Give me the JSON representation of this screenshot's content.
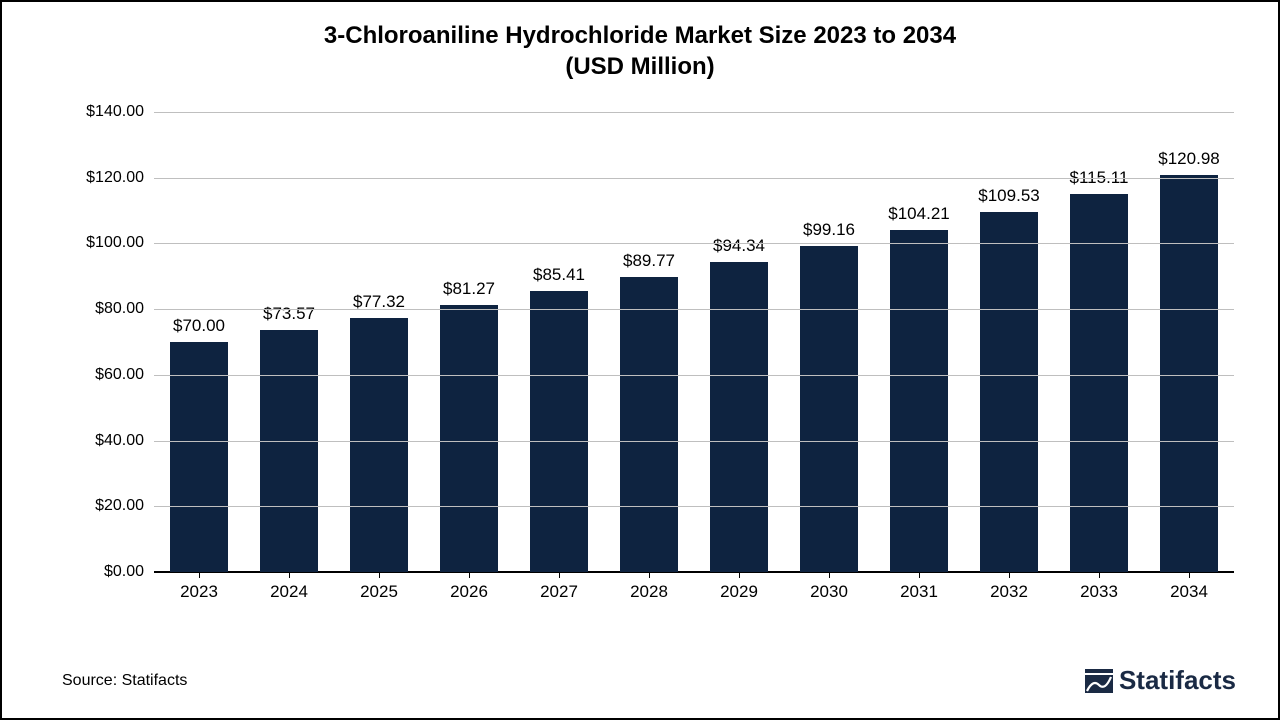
{
  "chart": {
    "type": "bar",
    "title_line1": "3-Chloroaniline Hydrochloride Market Size 2023 to 2034",
    "title_line2": "(USD Million)",
    "title_fontsize": 24,
    "categories": [
      "2023",
      "2024",
      "2025",
      "2026",
      "2027",
      "2028",
      "2029",
      "2030",
      "2031",
      "2032",
      "2033",
      "2034"
    ],
    "values": [
      70.0,
      73.57,
      77.32,
      81.27,
      85.41,
      89.77,
      94.34,
      99.16,
      104.21,
      109.53,
      115.11,
      120.98
    ],
    "value_labels": [
      "$70.00",
      "$73.57",
      "$77.32",
      "$81.27",
      "$85.41",
      "$89.77",
      "$94.34",
      "$99.16",
      "$104.21",
      "$109.53",
      "$115.11",
      "$120.98"
    ],
    "ylim": [
      0,
      140
    ],
    "yticks": [
      0,
      20,
      40,
      60,
      80,
      100,
      120,
      140
    ],
    "ytick_labels": [
      "$0.00",
      "$20.00",
      "$40.00",
      "$60.00",
      "$80.00",
      "$100.00",
      "$120.00",
      "$140.00"
    ],
    "bar_color": "#0e2340",
    "grid_color": "#bfbfbf",
    "axis_color": "#000000",
    "background_color": "#ffffff",
    "bar_width": 0.64,
    "label_fontsize": 17,
    "tick_fontsize": 16
  },
  "footer": {
    "source": "Source: Statifacts",
    "brand": "Statifacts",
    "brand_color": "#1a2a44"
  }
}
